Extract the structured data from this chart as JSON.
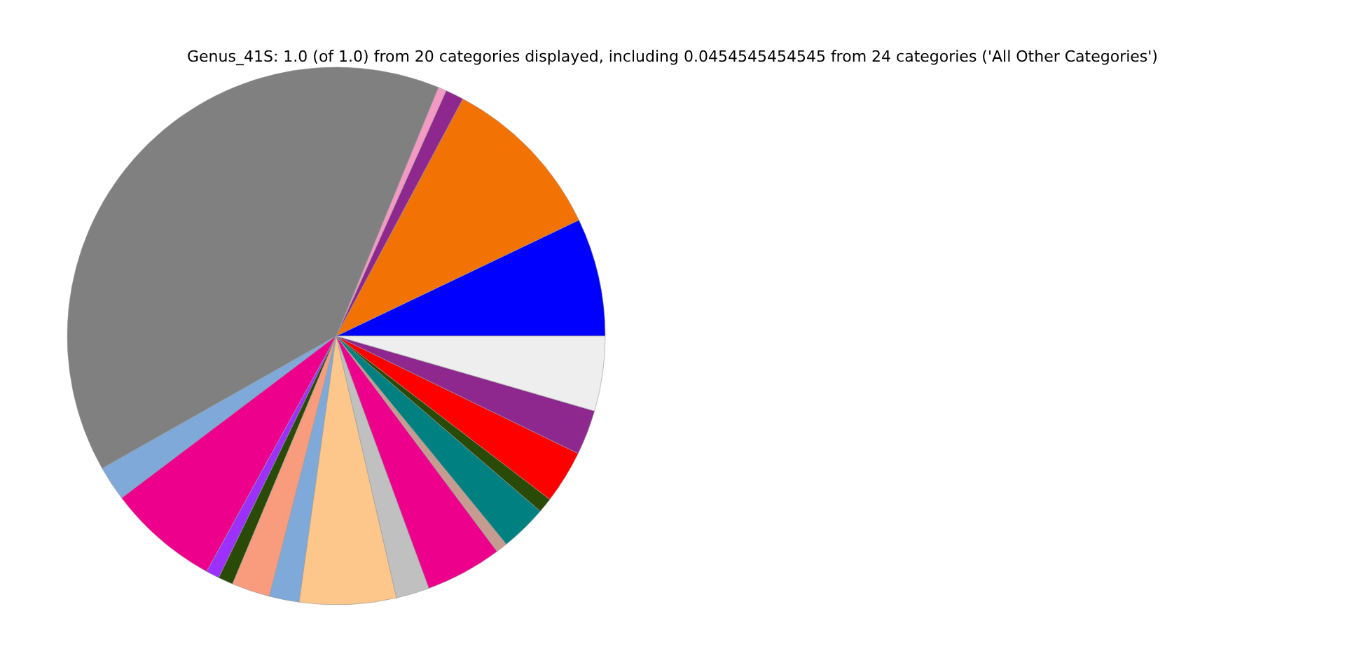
{
  "chart_data": {
    "type": "pie",
    "title": "Genus_41S: 1.0 (of 1.0) from 20 categories displayed, including 0.0454545454545 from 24 categories ('All Other Categories')",
    "categories": [
      null,
      null,
      null,
      null,
      null,
      null,
      null,
      null,
      null,
      null,
      null,
      null,
      null,
      null,
      null,
      null,
      null,
      null,
      null,
      null
    ],
    "values": [
      7.1,
      10.1,
      1.1,
      0.5,
      39.4,
      2.1,
      6.7,
      0.8,
      0.9,
      2.3,
      1.8,
      5.8,
      2.0,
      4.6,
      0.7,
      2.8,
      0.9,
      3.2,
      2.7,
      4.5
    ],
    "colors": [
      "#0000ff",
      "#f27304",
      "#8e288e",
      "#f49ac2",
      "#808080",
      "#7ea9d8",
      "#ec008c",
      "#9b30ff",
      "#2a4b08",
      "#f99b7d",
      "#7ea9d8",
      "#fdc68a",
      "#c0c0c0",
      "#ec008c",
      "#c69c91",
      "#008080",
      "#2a4b08",
      "#ff0000",
      "#8e288e",
      "#eeeeee"
    ]
  }
}
